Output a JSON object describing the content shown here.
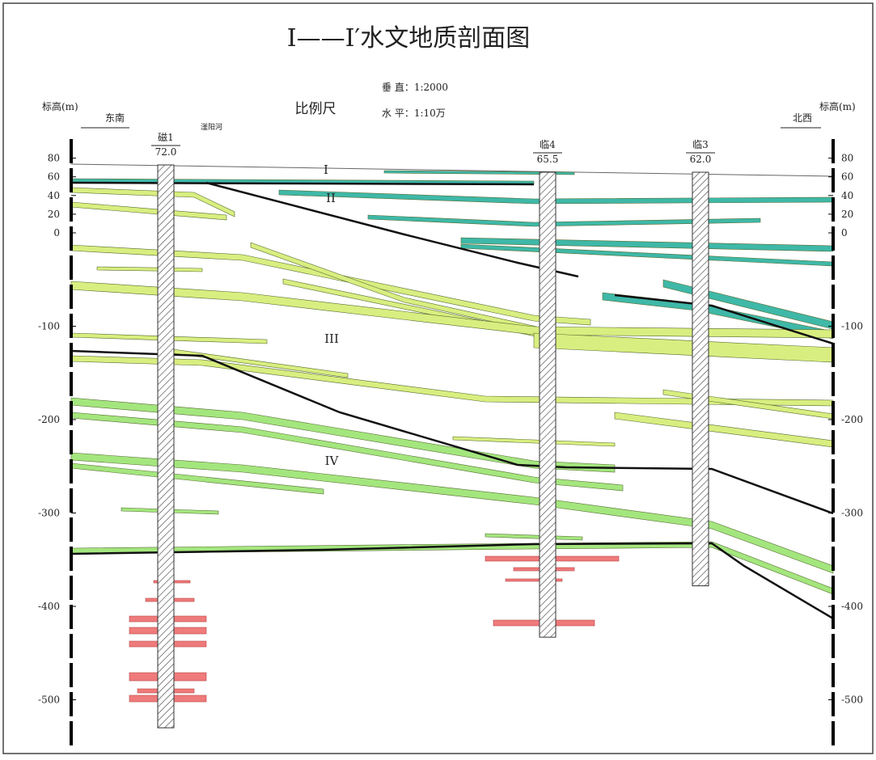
{
  "title": "I——I′水文地质剖面图",
  "scale": {
    "label": "比例尺",
    "vertical": "垂 直：1:2000",
    "horizontal": "水 平：1:10万"
  },
  "left_axis": {
    "label": "标高(m)",
    "direction": "东南"
  },
  "right_axis": {
    "label": "标高(m)",
    "direction": "北西"
  },
  "elevation_ticks": [
    80,
    60,
    40,
    20,
    0,
    -100,
    -200,
    -300,
    -400,
    -500
  ],
  "boreholes": [
    {
      "name": "磁1",
      "elevation": "72.0"
    },
    {
      "name": "临4",
      "elevation": "65.5"
    },
    {
      "name": "临3",
      "elevation": "62.0"
    }
  ],
  "river": "滏阳河",
  "aquifer_groups": [
    "I",
    "II",
    "III",
    "IV"
  ]
}
